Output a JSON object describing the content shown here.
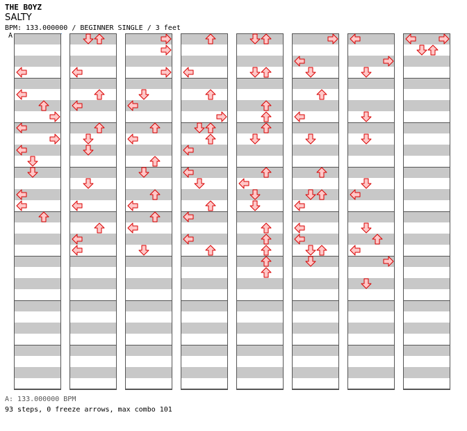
{
  "header": {
    "artist": "THE BOYZ",
    "title": "SALTY",
    "info": "BPM: 133.000000 / BEGINNER SINGLE / 3 feet",
    "bpm_marker": "A"
  },
  "footer": {
    "bpm_legend": "A: 133.000000 BPM",
    "stats": "93 steps, 0 freeze arrows, max combo 101"
  },
  "colors": {
    "arrow_fill": "#ffc8c8",
    "arrow_stroke": "#d80000",
    "stripe": "#c8c8c8",
    "bpm_line": "#4a90d9"
  },
  "arrow_icons": [
    "left-arrow-icon",
    "down-arrow-icon",
    "up-arrow-icon",
    "right-arrow-icon"
  ],
  "chart_notes": [
    [
      [
        3,
        0
      ],
      [
        6,
        2
      ],
      [
        7,
        3
      ],
      [
        5,
        0
      ],
      [
        8,
        0
      ],
      [
        9,
        3
      ],
      [
        10,
        0
      ],
      [
        11,
        1
      ],
      [
        12,
        1
      ],
      [
        14,
        0
      ],
      [
        15,
        0
      ],
      [
        16,
        2
      ]
    ],
    [
      [
        0,
        1
      ],
      [
        0,
        2
      ],
      [
        3,
        0
      ],
      [
        5,
        2
      ],
      [
        6,
        0
      ],
      [
        8,
        2
      ],
      [
        9,
        1
      ],
      [
        10,
        1
      ],
      [
        13,
        1
      ],
      [
        15,
        0
      ],
      [
        17,
        2
      ],
      [
        18,
        0
      ],
      [
        19,
        0
      ]
    ],
    [
      [
        0,
        3
      ],
      [
        1,
        3
      ],
      [
        3,
        3
      ],
      [
        5,
        1
      ],
      [
        6,
        0
      ],
      [
        8,
        2
      ],
      [
        9,
        0
      ],
      [
        11,
        2
      ],
      [
        12,
        1
      ],
      [
        14,
        2
      ],
      [
        15,
        0
      ],
      [
        16,
        2
      ],
      [
        17,
        0
      ],
      [
        19,
        1
      ]
    ],
    [
      [
        0,
        2
      ],
      [
        3,
        0
      ],
      [
        5,
        2
      ],
      [
        7,
        3
      ],
      [
        8,
        1
      ],
      [
        8,
        2
      ],
      [
        9,
        2
      ],
      [
        10,
        0
      ],
      [
        12,
        0
      ],
      [
        13,
        1
      ],
      [
        15,
        2
      ],
      [
        16,
        0
      ],
      [
        18,
        0
      ],
      [
        19,
        2
      ]
    ],
    [
      [
        0,
        1
      ],
      [
        0,
        2
      ],
      [
        3,
        1
      ],
      [
        3,
        2
      ],
      [
        6,
        2
      ],
      [
        7,
        2
      ],
      [
        8,
        2
      ],
      [
        9,
        1
      ],
      [
        12,
        2
      ],
      [
        13,
        0
      ],
      [
        14,
        1
      ],
      [
        15,
        1
      ],
      [
        17,
        2
      ],
      [
        18,
        2
      ],
      [
        19,
        2
      ],
      [
        20,
        2
      ],
      [
        21,
        2
      ]
    ],
    [
      [
        0,
        3
      ],
      [
        2,
        0
      ],
      [
        3,
        1
      ],
      [
        5,
        2
      ],
      [
        7,
        0
      ],
      [
        9,
        1
      ],
      [
        12,
        2
      ],
      [
        14,
        1
      ],
      [
        14,
        2
      ],
      [
        15,
        0
      ],
      [
        17,
        0
      ],
      [
        18,
        0
      ],
      [
        19,
        1
      ],
      [
        19,
        2
      ],
      [
        20,
        1
      ]
    ],
    [
      [
        0,
        0
      ],
      [
        2,
        3
      ],
      [
        3,
        1
      ],
      [
        7,
        1
      ],
      [
        9,
        1
      ],
      [
        13,
        1
      ],
      [
        14,
        0
      ],
      [
        17,
        1
      ],
      [
        18,
        2
      ],
      [
        19,
        0
      ],
      [
        20,
        3
      ],
      [
        22,
        1
      ]
    ],
    [
      [
        0,
        0
      ],
      [
        0,
        3
      ],
      [
        1,
        1
      ],
      [
        1,
        2
      ]
    ]
  ]
}
